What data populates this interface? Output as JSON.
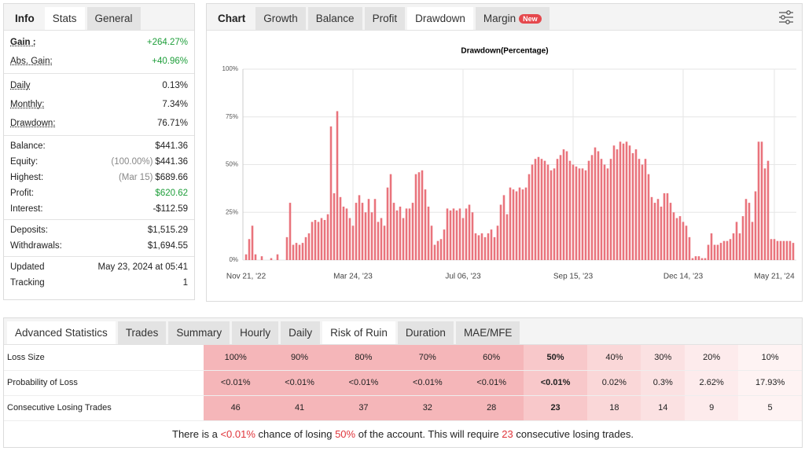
{
  "stats_panel": {
    "tabs": [
      "Info",
      "Stats",
      "General"
    ],
    "groups": [
      [
        {
          "label": "Gain :",
          "value": "+264.27%",
          "color": "#1e9e3a"
        },
        {
          "label": "Abs. Gain:",
          "value": "+40.96%",
          "color": "#1e9e3a"
        }
      ],
      [
        {
          "label": "Daily",
          "value": "0.13%"
        },
        {
          "label": "Monthly:",
          "value": "7.34%"
        },
        {
          "label": "Drawdown:",
          "value": "76.71%"
        }
      ],
      [
        {
          "label": "Balance:",
          "value": "$441.36"
        },
        {
          "label": "Equity:",
          "note": "(100.00%)",
          "value": "$441.36"
        },
        {
          "label": "Highest:",
          "note": "(Mar 15)",
          "value": "$689.66"
        },
        {
          "label": "Profit:",
          "value": "$620.62",
          "color": "#1e9e3a"
        },
        {
          "label": "Interest:",
          "value": "-$112.59"
        }
      ],
      [
        {
          "label": "Deposits:",
          "value": "$1,515.29"
        },
        {
          "label": "Withdrawals:",
          "value": "$1,694.55"
        }
      ],
      [
        {
          "label": "Updated",
          "value": "May 23, 2024 at 05:41"
        },
        {
          "label": "Tracking",
          "value": "1"
        }
      ]
    ]
  },
  "chart_panel": {
    "tabs": [
      "Chart",
      "Growth",
      "Balance",
      "Profit",
      "Drawdown",
      "Margin"
    ],
    "badge": "New"
  },
  "chart_data": {
    "type": "bar",
    "title": "Drawdown(Percentage)",
    "categories": [
      "Nov 21, '22",
      null,
      null,
      null,
      null,
      null,
      null,
      null,
      null,
      null,
      null,
      null,
      null,
      null,
      null,
      null,
      null,
      null,
      null,
      null,
      null,
      null,
      null,
      null,
      null,
      null,
      null,
      null,
      null,
      null,
      null,
      null,
      null,
      null,
      "Mar 24, '23",
      null,
      null,
      null,
      null,
      null,
      null,
      null,
      null,
      null,
      null,
      null,
      null,
      null,
      null,
      null,
      null,
      null,
      null,
      null,
      null,
      null,
      null,
      null,
      null,
      null,
      null,
      null,
      null,
      null,
      null,
      null,
      null,
      null,
      null,
      "Jul 06, '23",
      null,
      null,
      null,
      null,
      null,
      null,
      null,
      null,
      null,
      null,
      null,
      null,
      null,
      null,
      null,
      null,
      null,
      null,
      null,
      null,
      null,
      null,
      null,
      null,
      null,
      null,
      null,
      null,
      null,
      null,
      null,
      null,
      null,
      null,
      "Sep 15, '23",
      null,
      null,
      null,
      null,
      null,
      null,
      null,
      null,
      null,
      null,
      null,
      null,
      null,
      null,
      null,
      null,
      null,
      null,
      null,
      null,
      null,
      null,
      null,
      null,
      null,
      null,
      null,
      null,
      null,
      null,
      null,
      null,
      null,
      null,
      "Dec 14, '23",
      null,
      null,
      null,
      null,
      null,
      null,
      null,
      null,
      null,
      null,
      null,
      null,
      null,
      null,
      null,
      null,
      null,
      null,
      null,
      null,
      null,
      null,
      null,
      null,
      null,
      null,
      null,
      null,
      "May 21, '24",
      null,
      null,
      null,
      null,
      null,
      null
    ],
    "values": [
      3,
      11,
      18,
      3,
      0,
      2,
      0,
      0,
      1,
      0,
      3,
      0,
      0,
      12,
      30,
      8,
      9,
      8,
      9,
      12,
      14,
      20,
      21,
      20,
      22,
      21,
      24,
      70,
      35,
      78,
      33,
      28,
      27,
      22,
      18,
      30,
      34,
      30,
      25,
      32,
      25,
      32,
      20,
      22,
      18,
      38,
      45,
      30,
      26,
      28,
      22,
      27,
      27,
      30,
      45,
      46,
      47,
      37,
      28,
      18,
      8,
      10,
      11,
      16,
      27,
      26,
      27,
      26,
      27,
      22,
      27,
      29,
      25,
      14,
      13,
      14,
      12,
      14,
      16,
      12,
      18,
      29,
      34,
      24,
      38,
      37,
      36,
      38,
      37,
      38,
      45,
      50,
      53,
      54,
      53,
      52,
      50,
      47,
      48,
      53,
      55,
      58,
      57,
      52,
      50,
      49,
      48,
      48,
      47,
      52,
      55,
      59,
      57,
      53,
      50,
      48,
      53,
      60,
      58,
      62,
      61,
      62,
      60,
      56,
      58,
      53,
      50,
      53,
      45,
      33,
      30,
      32,
      28,
      35,
      35,
      30,
      25,
      22,
      23,
      20,
      18,
      12,
      1,
      2,
      2,
      1,
      1,
      8,
      14,
      8,
      8,
      9,
      10,
      10,
      11,
      14,
      20,
      14,
      23,
      32,
      30,
      20,
      36,
      62,
      62,
      48,
      52,
      11,
      11,
      10,
      10,
      10,
      10,
      10,
      9
    ],
    "color": "#e9737c",
    "ylim": [
      0,
      100
    ],
    "yticks": [
      {
        "value": 0,
        "label": "0%"
      },
      {
        "value": 25,
        "label": "25%"
      },
      {
        "value": 50,
        "label": "50%"
      },
      {
        "value": 75,
        "label": "75%"
      },
      {
        "value": 100,
        "label": "100%"
      }
    ],
    "grid": true
  },
  "advanced": {
    "tabs": [
      "Advanced Statistics",
      "Trades",
      "Summary",
      "Hourly",
      "Daily",
      "Risk of Ruin",
      "Duration",
      "MAE/MFE"
    ],
    "table": {
      "column_colors": [
        "#f5b6b9",
        "#f5b6b9",
        "#f5b6b9",
        "#f5b6b9",
        "#f5b6b9",
        "#f8c8ca",
        "#fad7d8",
        "#fbe1e2",
        "#fdebec",
        "#fef3f3"
      ],
      "rows": [
        {
          "label": "Loss Size",
          "cells": [
            "100%",
            "90%",
            "80%",
            "70%",
            "60%",
            "50%",
            "40%",
            "30%",
            "20%",
            "10%"
          ]
        },
        {
          "label": "Probability of Loss",
          "cells": [
            "<0.01%",
            "<0.01%",
            "<0.01%",
            "<0.01%",
            "<0.01%",
            "<0.01%",
            "0.02%",
            "0.3%",
            "2.62%",
            "17.93%"
          ]
        },
        {
          "label": "Consecutive Losing Trades",
          "cells": [
            "46",
            "41",
            "37",
            "32",
            "28",
            "23",
            "18",
            "14",
            "9",
            "5"
          ]
        }
      ]
    },
    "footer": [
      "There is a ",
      "<0.01%",
      " chance of losing ",
      "50%",
      " of the account. This will require ",
      "23",
      " consecutive losing trades."
    ]
  }
}
